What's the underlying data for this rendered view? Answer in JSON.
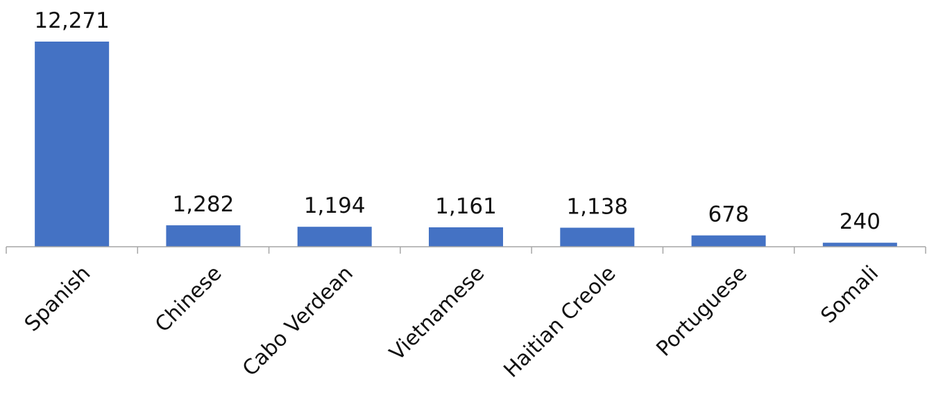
{
  "chart_data": {
    "type": "bar",
    "categories": [
      "Spanish",
      "Chinese",
      "Cabo Verdean",
      "Vietnamese",
      "Haitian Creole",
      "Portuguese",
      "Somali"
    ],
    "values": [
      12271,
      1282,
      1194,
      1161,
      1138,
      678,
      240
    ],
    "value_labels": [
      "12,271",
      "1,282",
      "1,194",
      "1,161",
      "1,138",
      "678",
      "240"
    ],
    "title": "",
    "xlabel": "",
    "ylabel": "",
    "ylim": [
      0,
      12271
    ],
    "grid": false,
    "legend": "none",
    "bar_color": "#4472C4",
    "axis_color": "#A6A6A6"
  }
}
